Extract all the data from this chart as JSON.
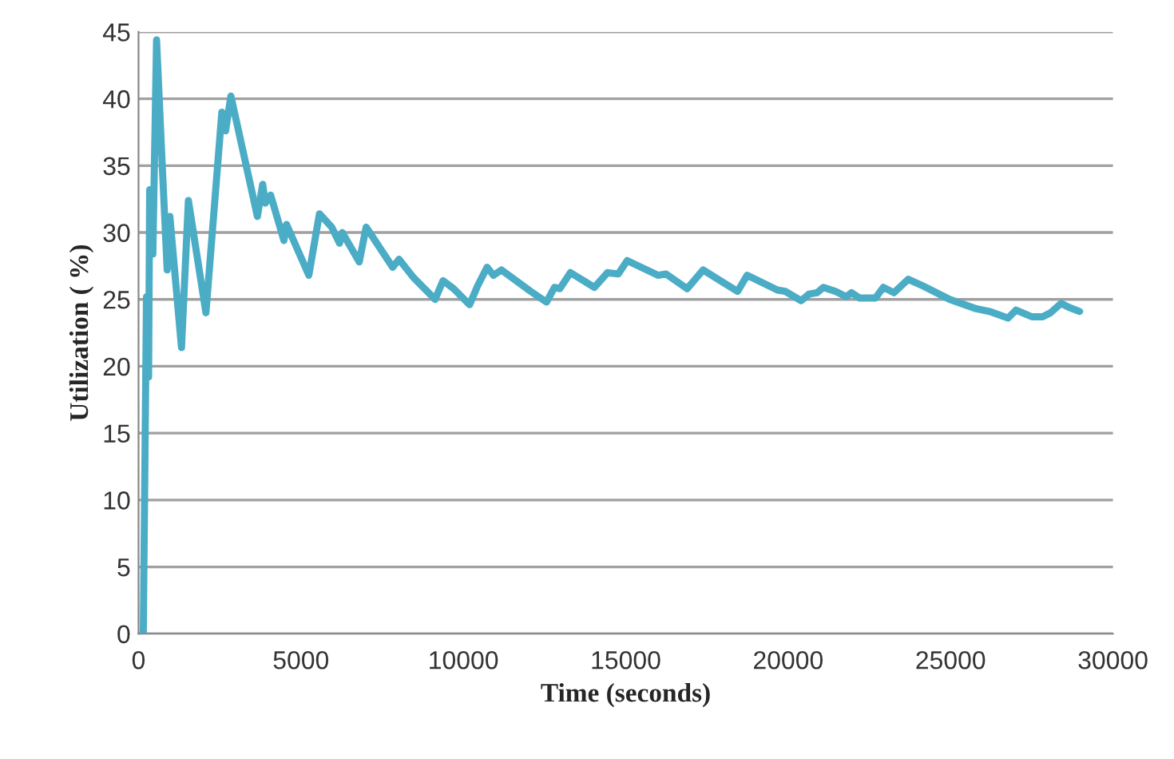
{
  "chart_data": {
    "type": "line",
    "xlabel": "Time (seconds)",
    "ylabel": "Utilization ( %)",
    "xlim": [
      0,
      30000
    ],
    "xticks": [
      0,
      5000,
      10000,
      15000,
      20000,
      25000,
      30000
    ],
    "ylim": [
      0,
      45
    ],
    "yticks": [
      0,
      5,
      10,
      15,
      20,
      25,
      30,
      35,
      40,
      45
    ],
    "grid": "y",
    "marker": "none",
    "line_style": "solid",
    "series": [
      {
        "color": "#4bacc6",
        "x": [
          147,
          245,
          310,
          343,
          441,
          555,
          719,
          882,
          964,
          1323,
          1535,
          2075,
          2565,
          2680,
          2843,
          3660,
          3822,
          3904,
          4067,
          4476,
          4557,
          5243,
          5570,
          5946,
          6190,
          6272,
          6795,
          7007,
          7824,
          8020,
          8477,
          9130,
          9375,
          9702,
          10192,
          10437,
          10731,
          10927,
          11172,
          12071,
          12561,
          12806,
          12970,
          13297,
          14032,
          14440,
          14767,
          15045,
          15993,
          16238,
          16891,
          17381,
          18443,
          18737,
          19668,
          19910,
          20400,
          20645,
          20890,
          21086,
          21462,
          21789,
          21952,
          22197,
          22687,
          22932,
          23258,
          23699,
          24157,
          24974,
          25790,
          26199,
          26770,
          27015,
          27505,
          27832,
          28077,
          28403,
          28648,
          28975
        ],
        "values": [
          0,
          25.2,
          19.2,
          33.2,
          28.4,
          44.4,
          35.6,
          27.2,
          31.2,
          21.4,
          32.4,
          24.0,
          39.0,
          37.6,
          40.2,
          31.2,
          33.6,
          32.2,
          32.8,
          29.4,
          30.6,
          26.8,
          31.4,
          30.4,
          29.2,
          30.0,
          27.8,
          30.4,
          27.4,
          28.0,
          26.6,
          25.0,
          26.4,
          25.8,
          24.6,
          26.0,
          27.4,
          26.8,
          27.2,
          25.6,
          24.8,
          25.9,
          25.8,
          27.0,
          25.9,
          27.0,
          26.9,
          27.9,
          26.8,
          26.9,
          25.8,
          27.2,
          25.6,
          26.8,
          25.7,
          25.6,
          24.9,
          25.4,
          25.5,
          25.9,
          25.6,
          25.2,
          25.5,
          25.1,
          25.1,
          25.9,
          25.5,
          26.5,
          26.0,
          25.0,
          24.3,
          24.1,
          23.6,
          24.2,
          23.7,
          23.7,
          24.0,
          24.7,
          24.4,
          24.1
        ]
      }
    ]
  }
}
